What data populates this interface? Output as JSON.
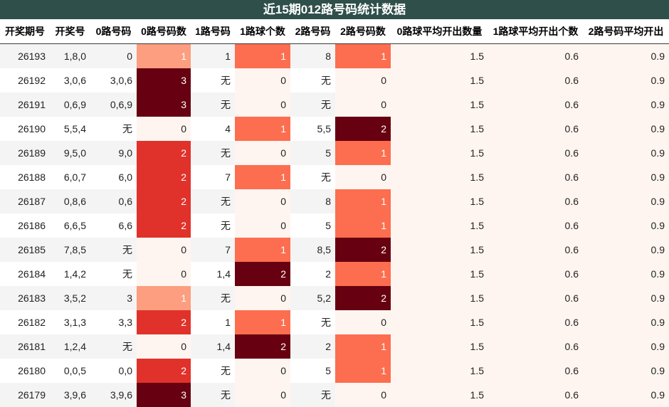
{
  "title": "近15期012路号码统计数据",
  "columns": [
    "开奖期号",
    "开奖号",
    "0路号码",
    "0路号码数",
    "1路号码",
    "1路球个数",
    "2路号码",
    "2路号码数",
    "0路球平均开出数量",
    "1路球平均开出个数",
    "2路号码平均开出"
  ],
  "heat_colors": {
    "0": "#fff5f0",
    "1": "#fc9e7f",
    "2": "#e0322b",
    "3": "#670010"
  },
  "heat_colors_1": {
    "0": "#fff5f0",
    "1": "#fc6e4f",
    "2": "#670010"
  },
  "heat_colors_2": {
    "0": "#fff5f0",
    "1": "#fc6e4f",
    "2": "#670010"
  },
  "rows": [
    [
      "26193",
      "1,8,0",
      "0",
      "1",
      "1",
      "1",
      "8",
      "1",
      "1.5",
      "0.6",
      "0.9"
    ],
    [
      "26192",
      "3,0,6",
      "3,0,6",
      "3",
      "无",
      "0",
      "无",
      "0",
      "1.5",
      "0.6",
      "0.9"
    ],
    [
      "26191",
      "0,6,9",
      "0,6,9",
      "3",
      "无",
      "0",
      "无",
      "0",
      "1.5",
      "0.6",
      "0.9"
    ],
    [
      "26190",
      "5,5,4",
      "无",
      "0",
      "4",
      "1",
      "5,5",
      "2",
      "1.5",
      "0.6",
      "0.9"
    ],
    [
      "26189",
      "9,5,0",
      "9,0",
      "2",
      "无",
      "0",
      "5",
      "1",
      "1.5",
      "0.6",
      "0.9"
    ],
    [
      "26188",
      "6,0,7",
      "6,0",
      "2",
      "7",
      "1",
      "无",
      "0",
      "1.5",
      "0.6",
      "0.9"
    ],
    [
      "26187",
      "0,8,6",
      "0,6",
      "2",
      "无",
      "0",
      "8",
      "1",
      "1.5",
      "0.6",
      "0.9"
    ],
    [
      "26186",
      "6,6,5",
      "6,6",
      "2",
      "无",
      "0",
      "5",
      "1",
      "1.5",
      "0.6",
      "0.9"
    ],
    [
      "26185",
      "7,8,5",
      "无",
      "0",
      "7",
      "1",
      "8,5",
      "2",
      "1.5",
      "0.6",
      "0.9"
    ],
    [
      "26184",
      "1,4,2",
      "无",
      "0",
      "1,4",
      "2",
      "2",
      "1",
      "1.5",
      "0.6",
      "0.9"
    ],
    [
      "26183",
      "3,5,2",
      "3",
      "1",
      "无",
      "0",
      "5,2",
      "2",
      "1.5",
      "0.6",
      "0.9"
    ],
    [
      "26182",
      "3,1,3",
      "3,3",
      "2",
      "1",
      "1",
      "无",
      "0",
      "1.5",
      "0.6",
      "0.9"
    ],
    [
      "26181",
      "1,2,4",
      "无",
      "0",
      "1,4",
      "2",
      "2",
      "1",
      "1.5",
      "0.6",
      "0.9"
    ],
    [
      "26180",
      "0,0,5",
      "0,0",
      "2",
      "无",
      "0",
      "5",
      "1",
      "1.5",
      "0.6",
      "0.9"
    ],
    [
      "26179",
      "3,9,6",
      "3,9,6",
      "3",
      "无",
      "0",
      "无",
      "0",
      "1.5",
      "0.6",
      "0.9"
    ]
  ]
}
